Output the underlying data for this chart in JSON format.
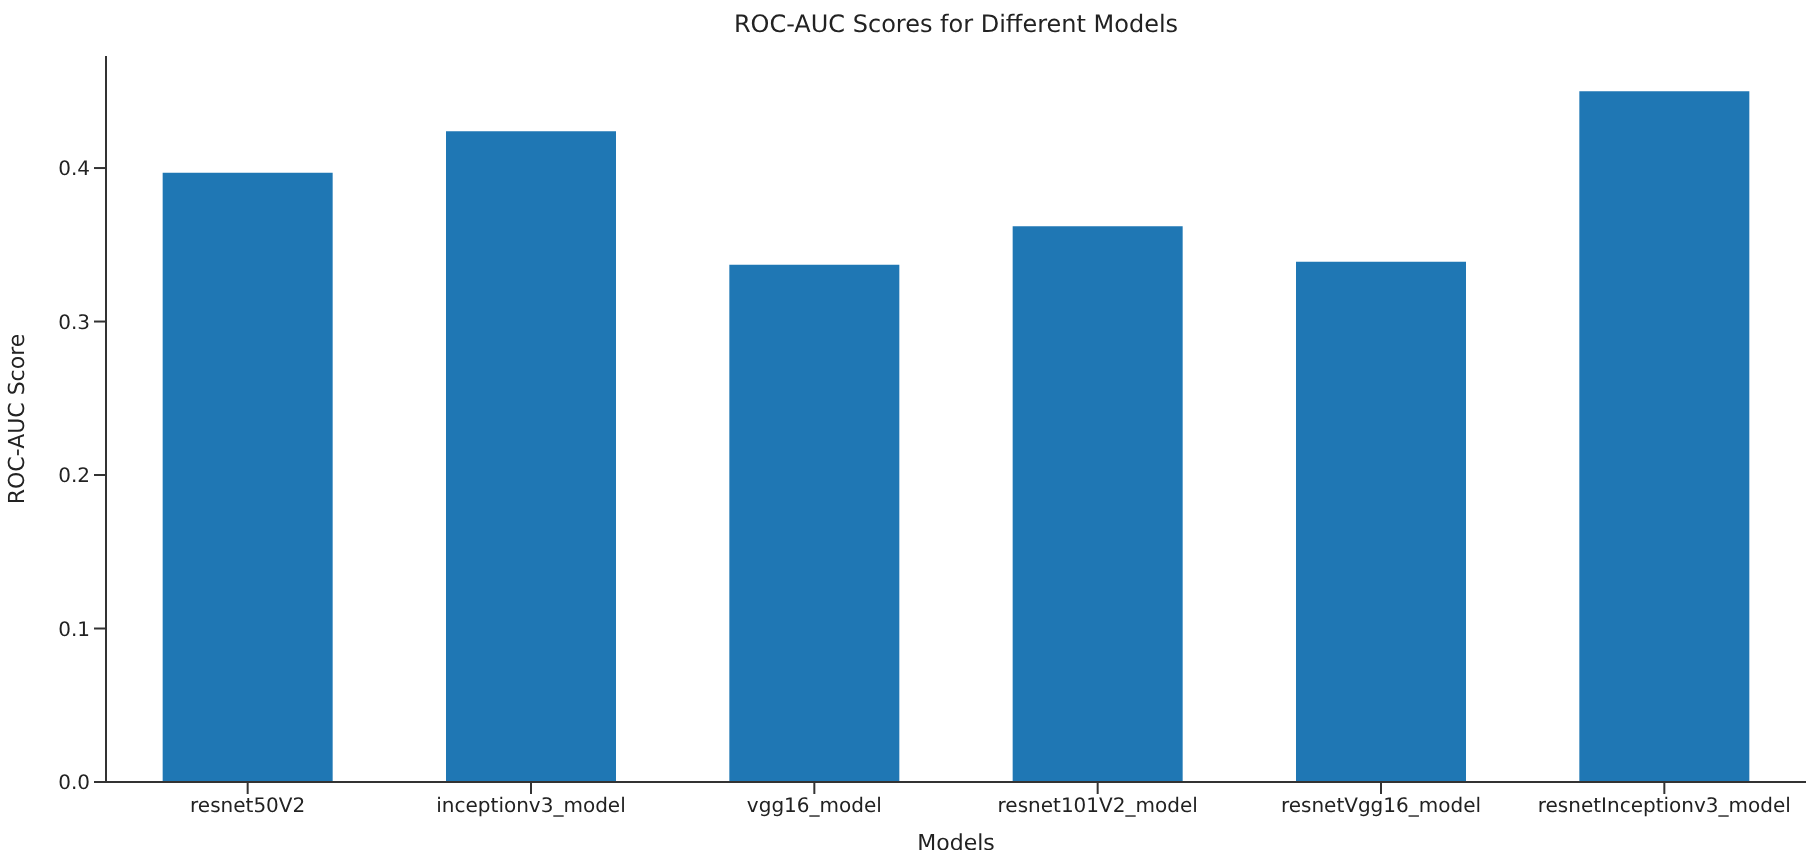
{
  "chart_data": {
    "type": "bar",
    "title": "ROC-AUC Scores for Different Models",
    "xlabel": "Models",
    "ylabel": "ROC-AUC Score",
    "categories": [
      "resnet50V2",
      "inceptionv3_model",
      "vgg16_model",
      "resnet101V2_model",
      "resnetVgg16_model",
      "resnetInceptionv3_model"
    ],
    "values": [
      0.397,
      0.424,
      0.337,
      0.362,
      0.339,
      0.45
    ],
    "color": "#1f77b4",
    "ylim": [
      0,
      0.473
    ],
    "yticks": [
      {
        "value": 0,
        "label": "0.0"
      },
      {
        "value": 0.1,
        "label": "0.1"
      },
      {
        "value": 0.2,
        "label": "0.2"
      },
      {
        "value": 0.3,
        "label": "0.3"
      },
      {
        "value": 0.4,
        "label": "0.4"
      }
    ],
    "grid": false
  }
}
